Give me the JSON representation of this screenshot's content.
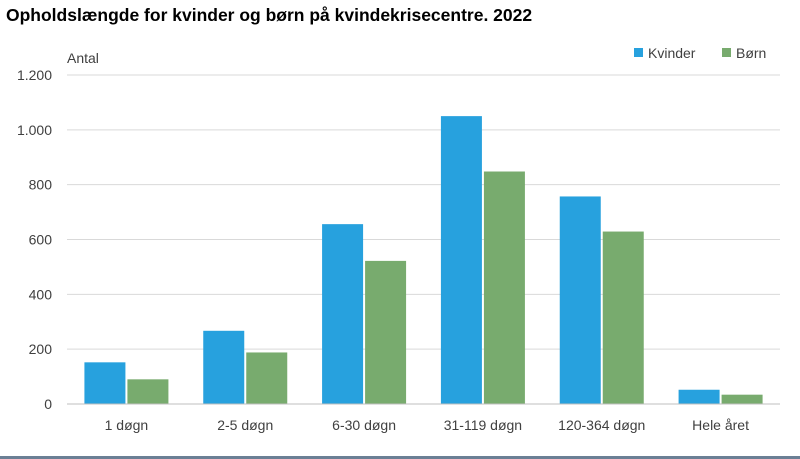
{
  "chart_data": {
    "type": "bar",
    "title": "Opholdslængde for kvinder og børn på kvindekrisecentre. 2022",
    "ylabel": "Antal",
    "xlabel": "",
    "categories": [
      "1 døgn",
      "2-5 døgn",
      "6-30 døgn",
      "31-119 døgn",
      "120-364 døgn",
      "Hele året"
    ],
    "series": [
      {
        "name": "Kvinder",
        "color": "#27a1de",
        "values": [
          152,
          267,
          656,
          1050,
          757,
          52
        ]
      },
      {
        "name": "Børn",
        "color": "#78ab6e",
        "values": [
          90,
          188,
          522,
          848,
          629,
          34
        ]
      }
    ],
    "ylim": [
      0,
      1200
    ],
    "yticks": [
      0,
      200,
      400,
      600,
      800,
      1000,
      1200
    ],
    "ytick_labels": [
      "0",
      "200",
      "400",
      "600",
      "800",
      "1.000",
      "1.200"
    ],
    "grid": true,
    "legend": "top-right"
  }
}
